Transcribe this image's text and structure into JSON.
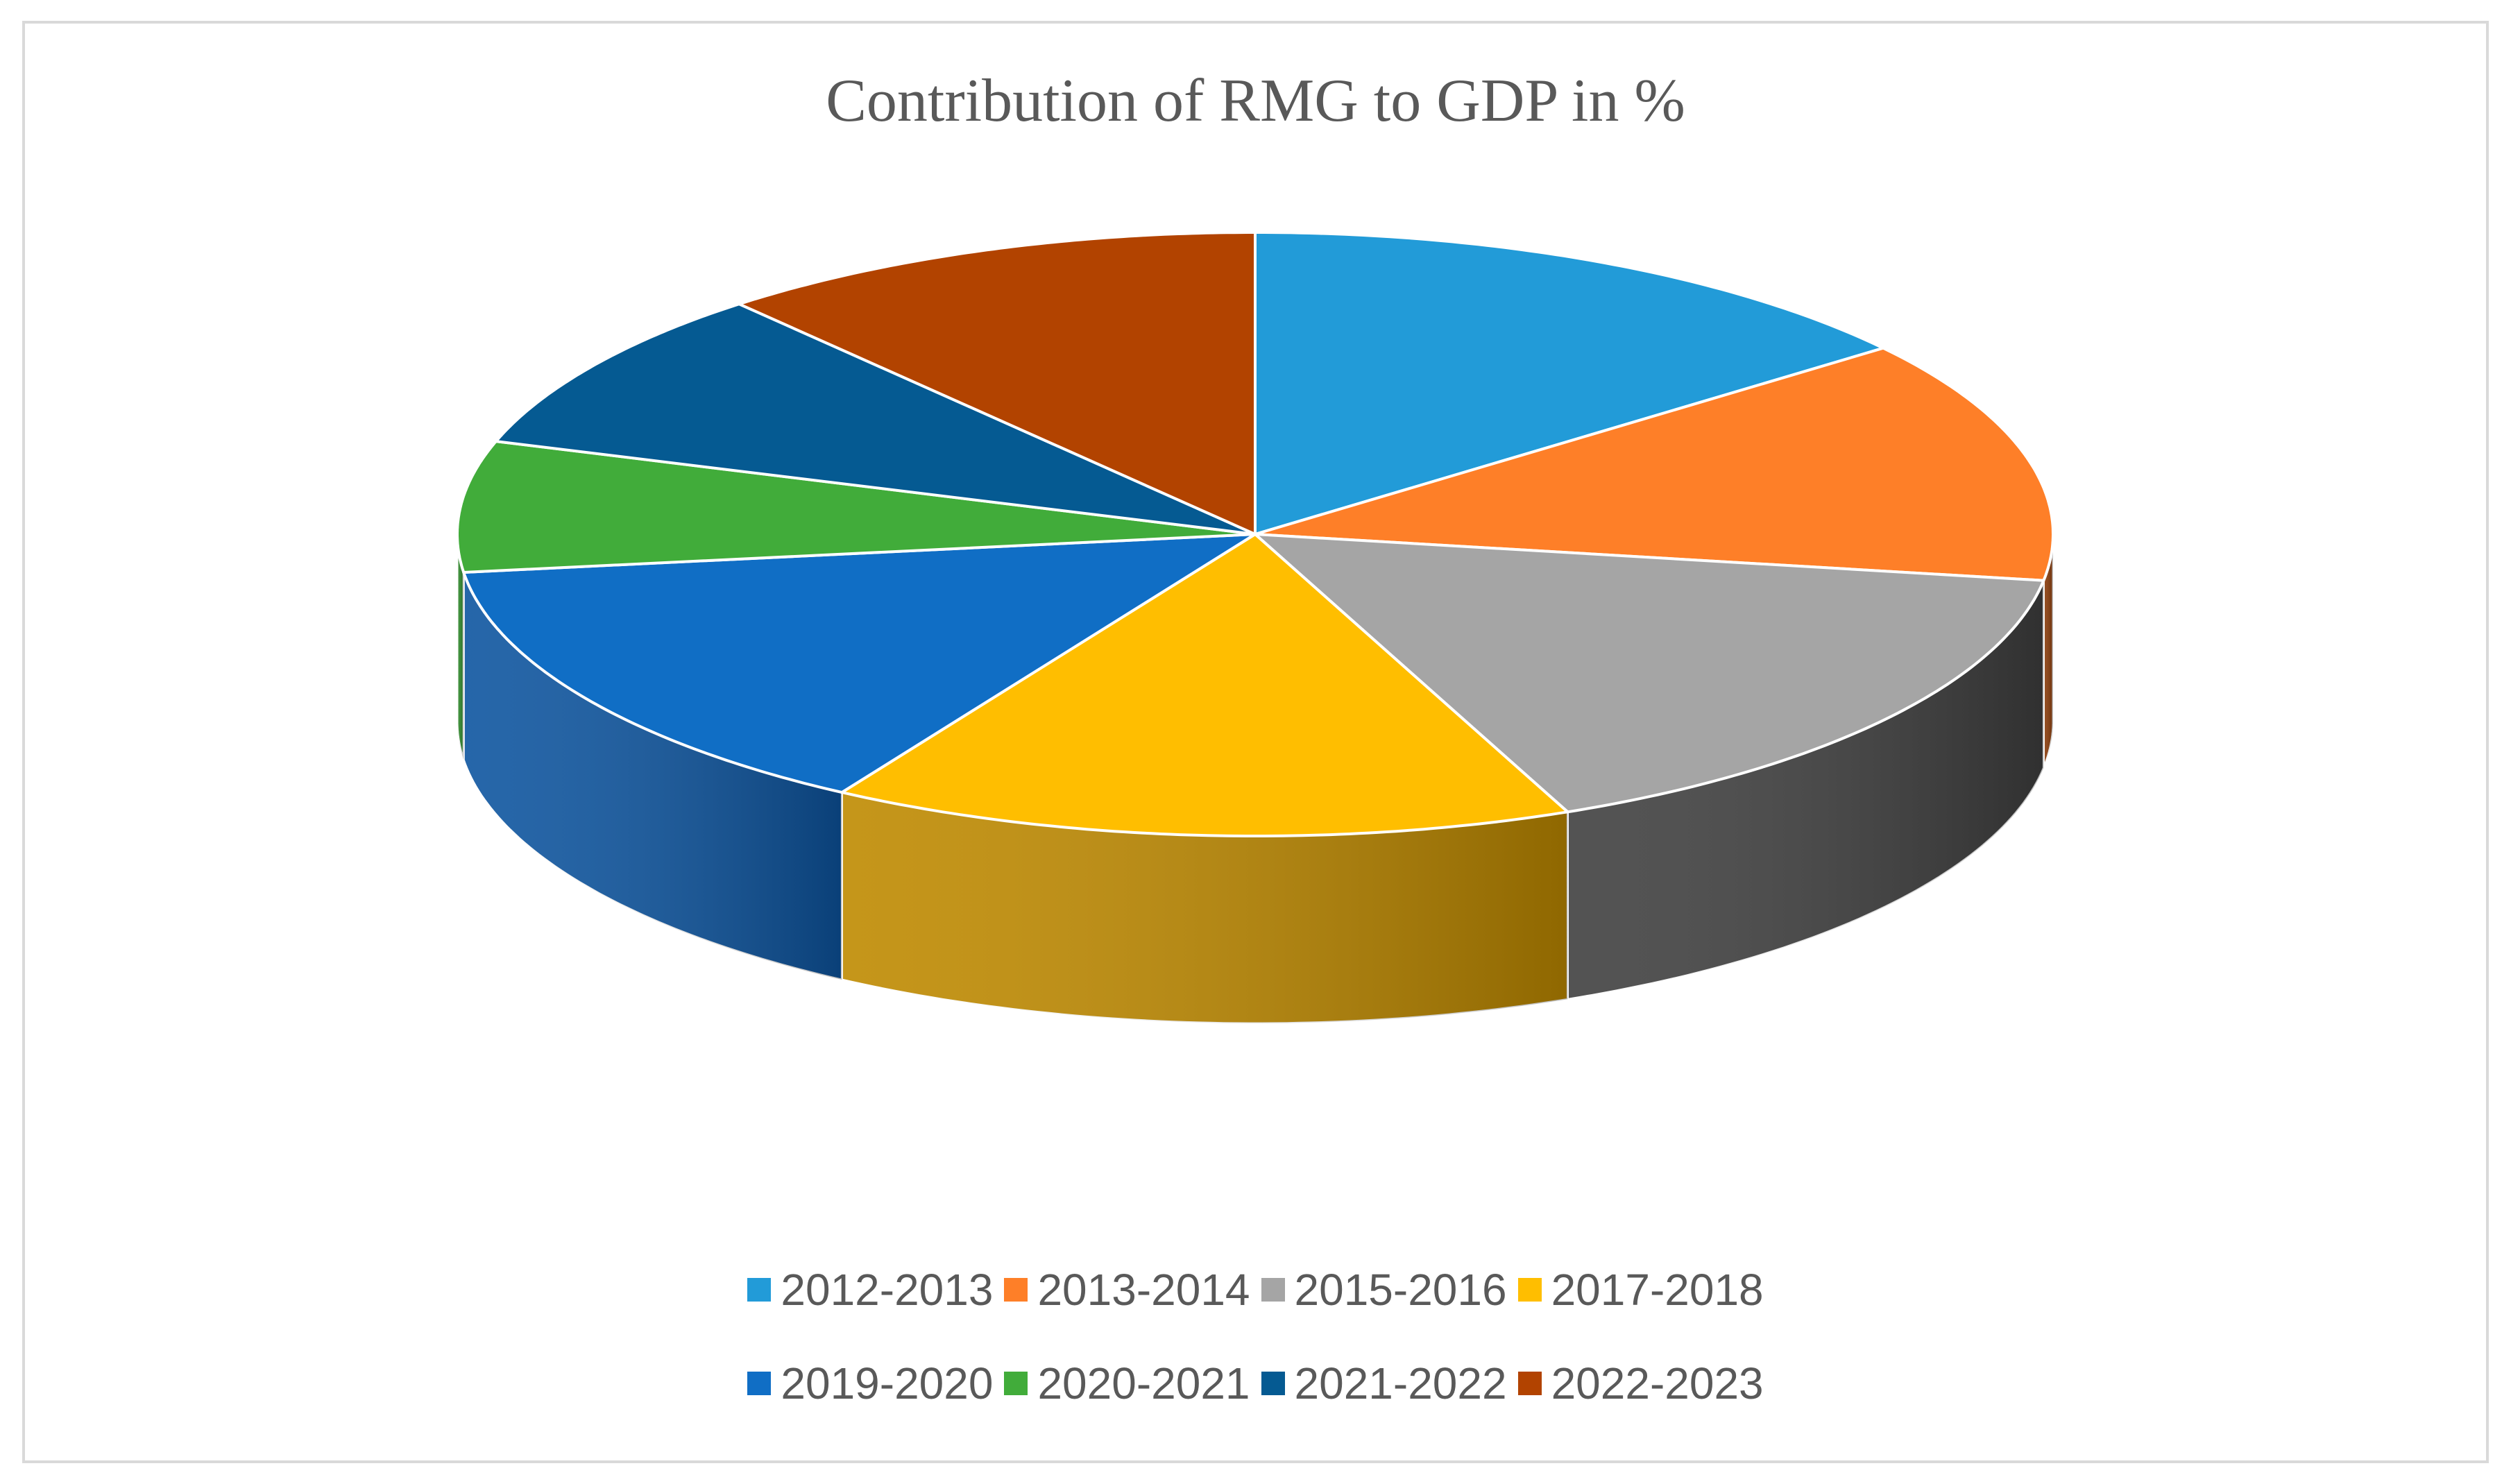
{
  "chart_data": {
    "type": "pie",
    "title": "Contribution of RMG to GDP in %",
    "categories": [
      "2012-2013",
      "2013-2014",
      "2015-2016",
      "2017-2018",
      "2019-2020",
      "2020-2021",
      "2021-2022",
      "2022-2023"
    ],
    "values": [
      13.4,
      12.1,
      15.0,
      14.0,
      13.3,
      6.5,
      8.2,
      10.4
    ],
    "colors": [
      "#229bd8",
      "#fe7f28",
      "#a5a5a5",
      "#ffbe00",
      "#106ec5",
      "#41ac3a",
      "#055a92",
      "#b24300"
    ],
    "side_colors": [
      "#157ab2",
      "#8a3a08",
      "#404040",
      "#bf8a00",
      "#0d55a0",
      "#2e8a2a",
      "#04466f",
      "#8a3400"
    ],
    "legend_placement": "bottom",
    "view": "3d"
  }
}
